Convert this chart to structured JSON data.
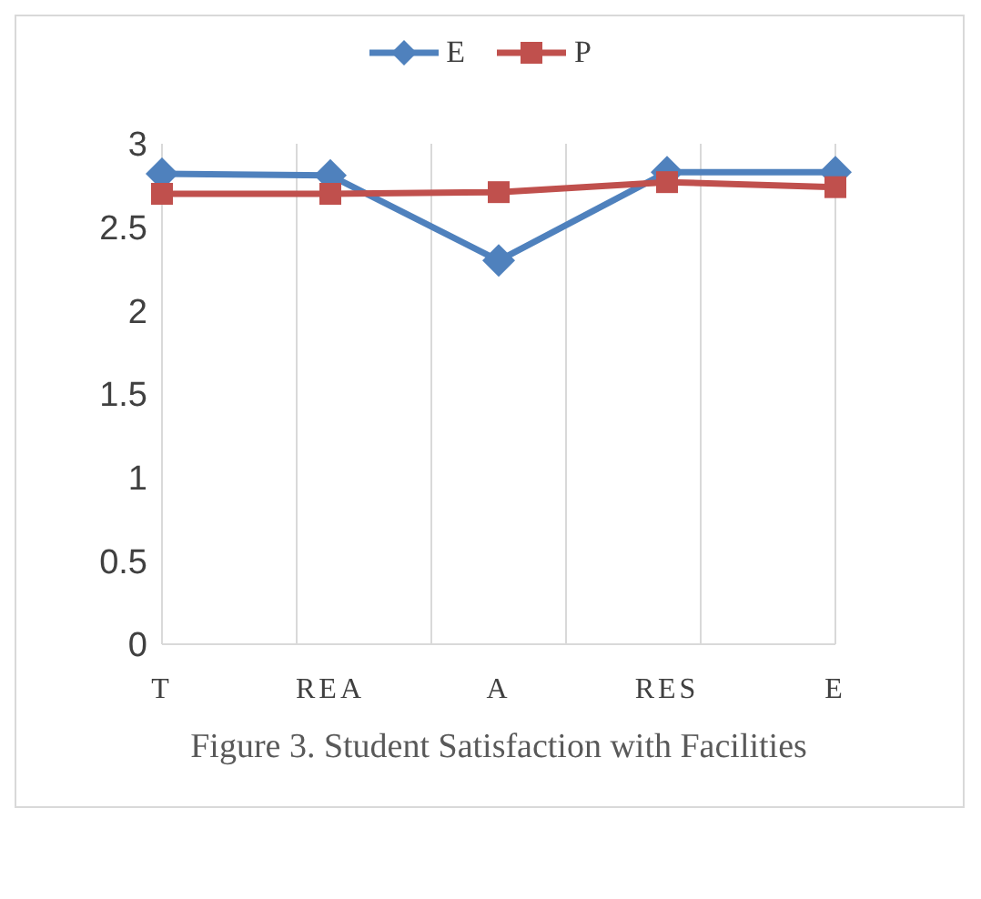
{
  "chart_data": {
    "type": "line",
    "title": "Figure 3. Student Satisfaction with Facilities",
    "categories": [
      "T",
      "REA",
      "A",
      "RES",
      "E"
    ],
    "series": [
      {
        "name": "E",
        "color": "#4f81bd",
        "marker": "diamond",
        "values": [
          2.82,
          2.81,
          2.3,
          2.83,
          2.83
        ]
      },
      {
        "name": "P",
        "color": "#c0504d",
        "marker": "square",
        "values": [
          2.7,
          2.7,
          2.71,
          2.77,
          2.74
        ]
      }
    ],
    "ylim": [
      0,
      3
    ],
    "yticks": [
      0,
      0.5,
      1,
      1.5,
      2,
      2.5,
      3
    ],
    "grid": "x",
    "legend": "top"
  }
}
